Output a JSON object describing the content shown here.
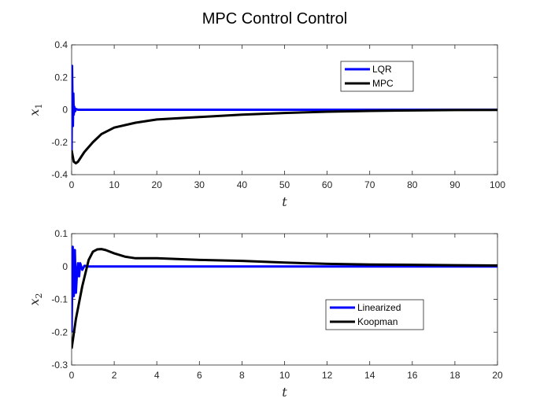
{
  "figure": {
    "title": "MPC Control Control"
  },
  "chart_data": [
    {
      "type": "line",
      "title": "MPC Control Control",
      "xlabel": "t",
      "ylabel": "x",
      "ylabel_subscript": "1",
      "xlim": [
        0,
        100
      ],
      "ylim": [
        -0.4,
        0.4
      ],
      "xticks": [
        0,
        10,
        20,
        30,
        40,
        50,
        60,
        70,
        80,
        90,
        100
      ],
      "yticks": [
        -0.4,
        -0.2,
        0,
        0.2,
        0.4
      ],
      "xtick_labels": [
        "0",
        "10",
        "20",
        "30",
        "40",
        "50",
        "60",
        "70",
        "80",
        "90",
        "100"
      ],
      "ytick_labels": [
        "-0.4",
        "-0.2",
        "0",
        "0.2",
        "0.4"
      ],
      "grid": false,
      "legend_position": "top-right",
      "series": [
        {
          "name": "LQR",
          "color": "#0000FF",
          "x": [
            0,
            0.1,
            0.2,
            0.3,
            0.4,
            0.5,
            0.6,
            0.8,
            1.0,
            1.5,
            2,
            5,
            20,
            50,
            100
          ],
          "y": [
            -0.25,
            0.27,
            0.05,
            -0.1,
            0.1,
            -0.03,
            0.02,
            -0.01,
            0.005,
            0,
            0,
            0,
            0,
            0,
            0
          ]
        },
        {
          "name": "MPC",
          "color": "#000000",
          "x": [
            0,
            0.5,
            1,
            1.5,
            2,
            3,
            5,
            7,
            10,
            15,
            20,
            30,
            40,
            50,
            60,
            70,
            80,
            90,
            100
          ],
          "y": [
            -0.25,
            -0.32,
            -0.33,
            -0.32,
            -0.3,
            -0.26,
            -0.2,
            -0.15,
            -0.11,
            -0.08,
            -0.06,
            -0.045,
            -0.03,
            -0.02,
            -0.012,
            -0.007,
            -0.004,
            -0.002,
            -0.001
          ]
        }
      ]
    },
    {
      "type": "line",
      "xlabel": "t",
      "ylabel": "x",
      "ylabel_subscript": "2",
      "xlim": [
        0,
        20
      ],
      "ylim": [
        -0.3,
        0.1
      ],
      "xticks": [
        0,
        2,
        4,
        6,
        8,
        10,
        12,
        14,
        16,
        18,
        20
      ],
      "yticks": [
        -0.3,
        -0.2,
        -0.1,
        0,
        0.1
      ],
      "xtick_labels": [
        "0",
        "2",
        "4",
        "6",
        "8",
        "10",
        "12",
        "14",
        "16",
        "18",
        "20"
      ],
      "ytick_labels": [
        "-0.3",
        "-0.2",
        "-0.1",
        "0",
        "0.1"
      ],
      "grid": false,
      "legend_position": "bottom-right",
      "series": [
        {
          "name": "Linearized",
          "color": "#0000FF",
          "x": [
            0,
            0.05,
            0.1,
            0.15,
            0.2,
            0.25,
            0.3,
            0.35,
            0.4,
            0.5,
            0.6,
            0.8,
            1.0,
            2,
            20
          ],
          "y": [
            -0.2,
            0.06,
            -0.09,
            0.05,
            -0.08,
            -0.02,
            0.01,
            -0.03,
            0.01,
            -0.01,
            0.002,
            0,
            0,
            0,
            0
          ]
        },
        {
          "name": "Koopman",
          "color": "#000000",
          "x": [
            0,
            0.2,
            0.5,
            0.8,
            1.0,
            1.2,
            1.4,
            1.6,
            2,
            2.5,
            3,
            4,
            6,
            8,
            10,
            12,
            14,
            16,
            18,
            20
          ],
          "y": [
            -0.25,
            -0.16,
            -0.06,
            0.02,
            0.045,
            0.052,
            0.053,
            0.05,
            0.04,
            0.03,
            0.025,
            0.025,
            0.02,
            0.017,
            0.012,
            0.008,
            0.006,
            0.005,
            0.004,
            0.003
          ]
        }
      ]
    }
  ]
}
